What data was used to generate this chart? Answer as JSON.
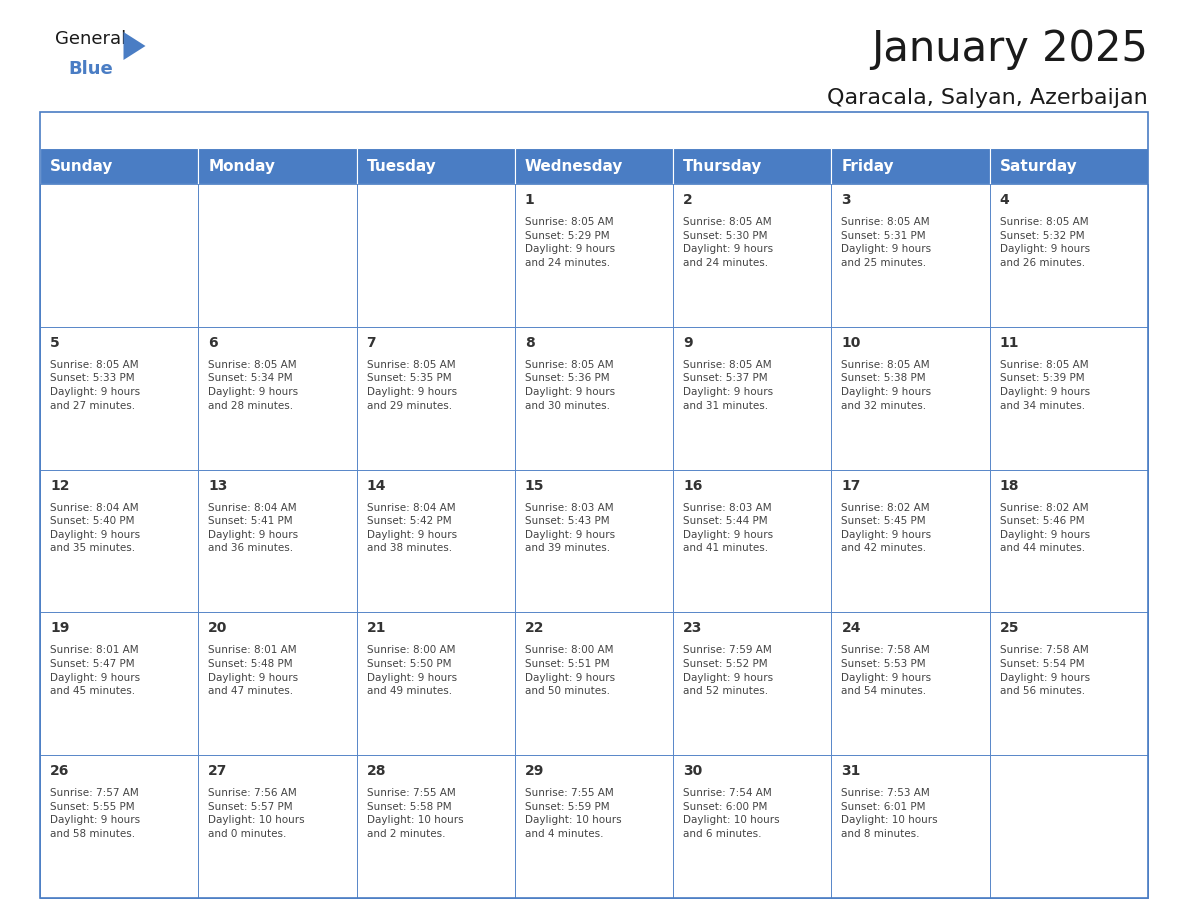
{
  "title": "January 2025",
  "subtitle": "Qaracala, Salyan, Azerbaijan",
  "header_bg_color": "#4a7dc4",
  "header_text_color": "#FFFFFF",
  "cell_bg_color": "#FFFFFF",
  "border_color": "#4a7dc4",
  "text_color": "#444444",
  "day_number_color": "#333333",
  "days_of_week": [
    "Sunday",
    "Monday",
    "Tuesday",
    "Wednesday",
    "Thursday",
    "Friday",
    "Saturday"
  ],
  "weeks": [
    [
      {
        "day": "",
        "info": ""
      },
      {
        "day": "",
        "info": ""
      },
      {
        "day": "",
        "info": ""
      },
      {
        "day": "1",
        "info": "Sunrise: 8:05 AM\nSunset: 5:29 PM\nDaylight: 9 hours\nand 24 minutes."
      },
      {
        "day": "2",
        "info": "Sunrise: 8:05 AM\nSunset: 5:30 PM\nDaylight: 9 hours\nand 24 minutes."
      },
      {
        "day": "3",
        "info": "Sunrise: 8:05 AM\nSunset: 5:31 PM\nDaylight: 9 hours\nand 25 minutes."
      },
      {
        "day": "4",
        "info": "Sunrise: 8:05 AM\nSunset: 5:32 PM\nDaylight: 9 hours\nand 26 minutes."
      }
    ],
    [
      {
        "day": "5",
        "info": "Sunrise: 8:05 AM\nSunset: 5:33 PM\nDaylight: 9 hours\nand 27 minutes."
      },
      {
        "day": "6",
        "info": "Sunrise: 8:05 AM\nSunset: 5:34 PM\nDaylight: 9 hours\nand 28 minutes."
      },
      {
        "day": "7",
        "info": "Sunrise: 8:05 AM\nSunset: 5:35 PM\nDaylight: 9 hours\nand 29 minutes."
      },
      {
        "day": "8",
        "info": "Sunrise: 8:05 AM\nSunset: 5:36 PM\nDaylight: 9 hours\nand 30 minutes."
      },
      {
        "day": "9",
        "info": "Sunrise: 8:05 AM\nSunset: 5:37 PM\nDaylight: 9 hours\nand 31 minutes."
      },
      {
        "day": "10",
        "info": "Sunrise: 8:05 AM\nSunset: 5:38 PM\nDaylight: 9 hours\nand 32 minutes."
      },
      {
        "day": "11",
        "info": "Sunrise: 8:05 AM\nSunset: 5:39 PM\nDaylight: 9 hours\nand 34 minutes."
      }
    ],
    [
      {
        "day": "12",
        "info": "Sunrise: 8:04 AM\nSunset: 5:40 PM\nDaylight: 9 hours\nand 35 minutes."
      },
      {
        "day": "13",
        "info": "Sunrise: 8:04 AM\nSunset: 5:41 PM\nDaylight: 9 hours\nand 36 minutes."
      },
      {
        "day": "14",
        "info": "Sunrise: 8:04 AM\nSunset: 5:42 PM\nDaylight: 9 hours\nand 38 minutes."
      },
      {
        "day": "15",
        "info": "Sunrise: 8:03 AM\nSunset: 5:43 PM\nDaylight: 9 hours\nand 39 minutes."
      },
      {
        "day": "16",
        "info": "Sunrise: 8:03 AM\nSunset: 5:44 PM\nDaylight: 9 hours\nand 41 minutes."
      },
      {
        "day": "17",
        "info": "Sunrise: 8:02 AM\nSunset: 5:45 PM\nDaylight: 9 hours\nand 42 minutes."
      },
      {
        "day": "18",
        "info": "Sunrise: 8:02 AM\nSunset: 5:46 PM\nDaylight: 9 hours\nand 44 minutes."
      }
    ],
    [
      {
        "day": "19",
        "info": "Sunrise: 8:01 AM\nSunset: 5:47 PM\nDaylight: 9 hours\nand 45 minutes."
      },
      {
        "day": "20",
        "info": "Sunrise: 8:01 AM\nSunset: 5:48 PM\nDaylight: 9 hours\nand 47 minutes."
      },
      {
        "day": "21",
        "info": "Sunrise: 8:00 AM\nSunset: 5:50 PM\nDaylight: 9 hours\nand 49 minutes."
      },
      {
        "day": "22",
        "info": "Sunrise: 8:00 AM\nSunset: 5:51 PM\nDaylight: 9 hours\nand 50 minutes."
      },
      {
        "day": "23",
        "info": "Sunrise: 7:59 AM\nSunset: 5:52 PM\nDaylight: 9 hours\nand 52 minutes."
      },
      {
        "day": "24",
        "info": "Sunrise: 7:58 AM\nSunset: 5:53 PM\nDaylight: 9 hours\nand 54 minutes."
      },
      {
        "day": "25",
        "info": "Sunrise: 7:58 AM\nSunset: 5:54 PM\nDaylight: 9 hours\nand 56 minutes."
      }
    ],
    [
      {
        "day": "26",
        "info": "Sunrise: 7:57 AM\nSunset: 5:55 PM\nDaylight: 9 hours\nand 58 minutes."
      },
      {
        "day": "27",
        "info": "Sunrise: 7:56 AM\nSunset: 5:57 PM\nDaylight: 10 hours\nand 0 minutes."
      },
      {
        "day": "28",
        "info": "Sunrise: 7:55 AM\nSunset: 5:58 PM\nDaylight: 10 hours\nand 2 minutes."
      },
      {
        "day": "29",
        "info": "Sunrise: 7:55 AM\nSunset: 5:59 PM\nDaylight: 10 hours\nand 4 minutes."
      },
      {
        "day": "30",
        "info": "Sunrise: 7:54 AM\nSunset: 6:00 PM\nDaylight: 10 hours\nand 6 minutes."
      },
      {
        "day": "31",
        "info": "Sunrise: 7:53 AM\nSunset: 6:01 PM\nDaylight: 10 hours\nand 8 minutes."
      },
      {
        "day": "",
        "info": ""
      }
    ]
  ]
}
